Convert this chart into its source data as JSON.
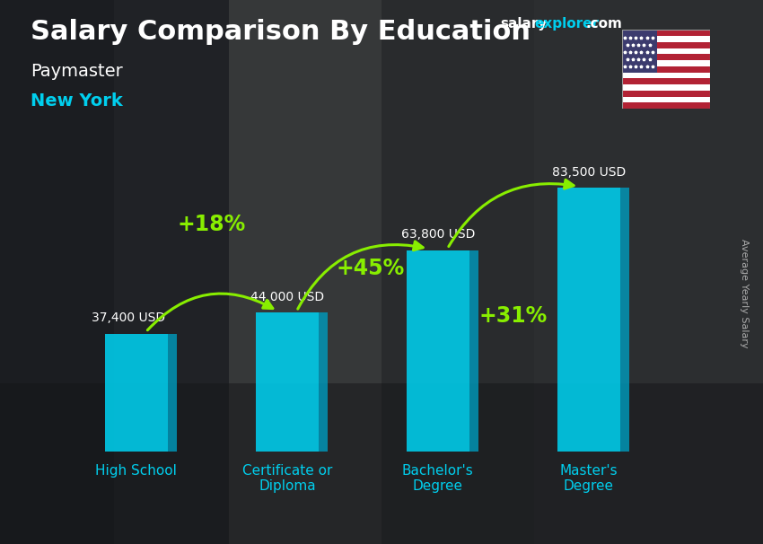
{
  "title": "Salary Comparison By Education",
  "subtitle1": "Paymaster",
  "subtitle2": "New York",
  "ylabel": "Average Yearly Salary",
  "watermark_salary": "salary",
  "watermark_explorer": "explorer",
  "watermark_com": ".com",
  "categories": [
    "High School",
    "Certificate or\nDiploma",
    "Bachelor's\nDegree",
    "Master's\nDegree"
  ],
  "values": [
    37400,
    44000,
    63800,
    83500
  ],
  "labels": [
    "37,400 USD",
    "44,000 USD",
    "63,800 USD",
    "83,500 USD"
  ],
  "pct_labels": [
    "+18%",
    "+45%",
    "+31%"
  ],
  "bar_color_main": "#00CFEE",
  "bar_color_right": "#0099BB",
  "bar_color_top": "#88EEFF",
  "bar_edge_color": "none",
  "bg_color_top": "#3a3d42",
  "bg_color_bottom": "#2a2d32",
  "title_color": "#FFFFFF",
  "subtitle1_color": "#FFFFFF",
  "subtitle2_color": "#00CFEE",
  "label_color": "#FFFFFF",
  "pct_color": "#88EE00",
  "ylabel_color": "#AAAAAA",
  "xticklabel_color": "#00CFEE",
  "ylim": [
    0,
    100000
  ],
  "bar_width": 0.42,
  "label_offsets": [
    3000,
    3000,
    3000,
    3000
  ],
  "pct_arc_rad": 0.45,
  "title_fontsize": 22,
  "subtitle1_fontsize": 14,
  "subtitle2_fontsize": 14,
  "label_fontsize": 10,
  "pct_fontsize": 17,
  "xticklabel_fontsize": 11,
  "ylabel_fontsize": 8
}
